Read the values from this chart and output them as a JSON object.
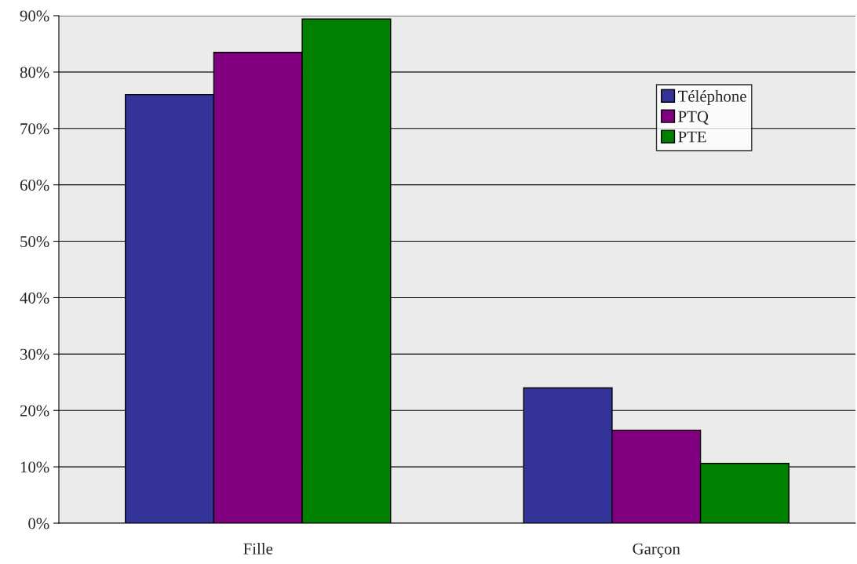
{
  "chart_data": {
    "type": "bar",
    "categories": [
      "Fille",
      "Garçon"
    ],
    "series": [
      {
        "name": "Téléphone",
        "color": "#333399",
        "values": [
          76,
          24
        ]
      },
      {
        "name": "PTQ",
        "color": "#800080",
        "values": [
          83.5,
          16.5
        ]
      },
      {
        "name": "PTE",
        "color": "#008000",
        "values": [
          89.4,
          10.6
        ]
      }
    ],
    "ylim": [
      0,
      90
    ],
    "yticks": [
      {
        "value": 0,
        "label": "0%"
      },
      {
        "value": 10,
        "label": "10%"
      },
      {
        "value": 20,
        "label": "20%"
      },
      {
        "value": 30,
        "label": "30%"
      },
      {
        "value": 40,
        "label": "40%"
      },
      {
        "value": 50,
        "label": "50%"
      },
      {
        "value": 60,
        "label": "60%"
      },
      {
        "value": 70,
        "label": "70%"
      },
      {
        "value": 80,
        "label": "80%"
      },
      {
        "value": 90,
        "label": "90%"
      }
    ],
    "grid": "y",
    "legend": "top right"
  }
}
